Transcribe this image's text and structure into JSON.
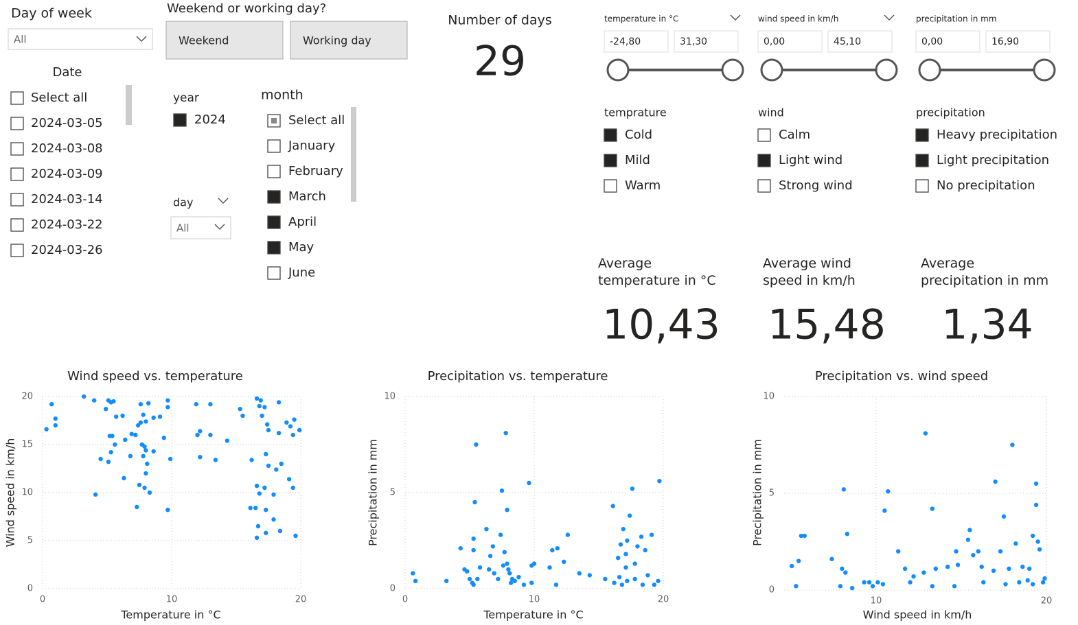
{
  "slicers": {
    "day_of_week": {
      "title": "Day of week",
      "value": "All"
    },
    "weekend": {
      "title": "Weekend or working day?",
      "options": [
        "Weekend",
        "Working day"
      ]
    },
    "date": {
      "title": "Date",
      "items": [
        {
          "label": "Select all",
          "state": "unchecked"
        },
        {
          "label": "2024-03-05",
          "state": "unchecked"
        },
        {
          "label": "2024-03-08",
          "state": "unchecked"
        },
        {
          "label": "2024-03-09",
          "state": "unchecked"
        },
        {
          "label": "2024-03-14",
          "state": "unchecked"
        },
        {
          "label": "2024-03-22",
          "state": "unchecked"
        },
        {
          "label": "2024-03-26",
          "state": "unchecked"
        }
      ]
    },
    "year": {
      "title": "year",
      "items": [
        {
          "label": "2024",
          "state": "checked"
        }
      ]
    },
    "day": {
      "title": "day",
      "value": "All"
    },
    "month": {
      "title": "month",
      "items": [
        {
          "label": "Select all",
          "state": "partial"
        },
        {
          "label": "January",
          "state": "unchecked"
        },
        {
          "label": "February",
          "state": "unchecked"
        },
        {
          "label": "March",
          "state": "checked"
        },
        {
          "label": "April",
          "state": "checked"
        },
        {
          "label": "May",
          "state": "checked"
        },
        {
          "label": "June",
          "state": "unchecked"
        }
      ]
    },
    "ranges": [
      {
        "title": "temperature in °C",
        "min": "-24,80",
        "max": "31,30",
        "collapsible": true
      },
      {
        "title": "wind speed in km/h",
        "min": "0,00",
        "max": "45,10",
        "collapsible": true
      },
      {
        "title": "precipitation in mm",
        "min": "0,00",
        "max": "16,90",
        "collapsible": false
      }
    ],
    "categories": [
      {
        "title": "temprature",
        "items": [
          {
            "label": "Cold",
            "state": "checked"
          },
          {
            "label": "Mild",
            "state": "checked"
          },
          {
            "label": "Warm",
            "state": "unchecked"
          }
        ]
      },
      {
        "title": "wind",
        "items": [
          {
            "label": "Calm",
            "state": "unchecked"
          },
          {
            "label": "Light wind",
            "state": "checked"
          },
          {
            "label": "Strong wind",
            "state": "unchecked"
          }
        ]
      },
      {
        "title": "precipitation",
        "items": [
          {
            "label": "Heavy precipitation",
            "state": "checked"
          },
          {
            "label": "Light precipitation",
            "state": "checked"
          },
          {
            "label": "No precipitation",
            "state": "unchecked"
          }
        ]
      }
    ]
  },
  "cards": {
    "days": {
      "label": "Number of days",
      "value": 29
    },
    "averages": [
      {
        "label": "Average temperature in °C",
        "value": "10,43"
      },
      {
        "label": "Average wind speed in km/h",
        "value": "15,48"
      },
      {
        "label": "Average precipitation in mm",
        "value": "1,34"
      }
    ]
  },
  "chart_data": [
    {
      "type": "scatter",
      "title": "Wind speed vs. temperature",
      "x_label": "Temperature in °C",
      "y_label": "Wind speed in km/h",
      "xlim": [
        0,
        20
      ],
      "ylim": [
        0,
        20
      ],
      "xticks": [
        0,
        10,
        20
      ],
      "yticks": [
        0,
        5,
        10,
        15,
        20
      ],
      "grid": true,
      "series": [
        {
          "color": "#118dff",
          "x": [
            0.3,
            0.7,
            1.0,
            1.0,
            3.2,
            4.0,
            4.1,
            4.5,
            4.9,
            5.1,
            5.3,
            5.5,
            5.2,
            5.4,
            5.6,
            5.3,
            5.1,
            5.7,
            6.2,
            6.4,
            6.3,
            6.8,
            6.9,
            7.2,
            7.4,
            7.6,
            7.6,
            7.8,
            8.0,
            7.7,
            7.9,
            8.0,
            7.8,
            8.1,
            8.0,
            7.5,
            7.9,
            8.3,
            7.3,
            8.6,
            8.2,
            8.6,
            9.1,
            9.4,
            9.7,
            9.7,
            9.9,
            9.7,
            11.9,
            12.0,
            12.2,
            12.2,
            13.0,
            13.0,
            13.4,
            14.3,
            15.3,
            15.5,
            16.2,
            16.6,
            16.9,
            16.8,
            17.2,
            17.0,
            17.4,
            17.5,
            17.3,
            17.5,
            16.6,
            16.8,
            17.2,
            16.1,
            16.5,
            17.3,
            17.9,
            16.7,
            16.6,
            17.3,
            17.9,
            18.1,
            18.5,
            18.3,
            18.3,
            18.9,
            18.4,
            19.1,
            19.2,
            19.4,
            19.5,
            19.4,
            19.9,
            19.6
          ],
          "values": [
            16.6,
            19.2,
            17.7,
            17.0,
            20,
            19.6,
            9.8,
            13.5,
            18.7,
            19.6,
            19.4,
            19.5,
            15.9,
            15.9,
            15.0,
            14.2,
            13.2,
            17.9,
            18.0,
            15.5,
            11.5,
            13.8,
            16.1,
            16.0,
            17.0,
            17.3,
            19.2,
            18.1,
            17.4,
            15.0,
            14.8,
            14.4,
            13.8,
            13.0,
            12.0,
            10.8,
            10.5,
            10.0,
            8.5,
            14.3,
            19.3,
            17.8,
            17.9,
            15.7,
            18.9,
            19.6,
            13.5,
            8.2,
            19.2,
            16.0,
            16.4,
            13.7,
            19.2,
            16.0,
            13.4,
            15.4,
            18.7,
            18.0,
            13.4,
            19.8,
            19.6,
            19.0,
            18.9,
            18.0,
            17.1,
            16.5,
            14.0,
            12.8,
            10.7,
            9.9,
            10.5,
            8.4,
            8.4,
            8.2,
            7.2,
            6.5,
            5.3,
            5.8,
            9.8,
            12.4,
            13.0,
            19.4,
            16.2,
            17.3,
            6.0,
            11.4,
            16.9,
            16.0,
            17.6,
            10.5,
            16.5,
            5.5
          ]
        }
      ]
    },
    {
      "type": "scatter",
      "title": "Precipitation vs. temperature",
      "x_label": "Temperature in °C",
      "y_label": "Precipitation in mm",
      "xlim": [
        0,
        20
      ],
      "ylim": [
        0,
        10
      ],
      "xticks": [
        0,
        10,
        20
      ],
      "yticks": [
        0,
        5,
        10
      ],
      "grid": true,
      "series": [
        {
          "color": "#118dff",
          "x": [
            0.6,
            0.8,
            3.2,
            4.3,
            4.6,
            4.8,
            5.0,
            5.2,
            5.3,
            5.3,
            5.3,
            5.4,
            5.5,
            5.6,
            5.8,
            6.3,
            6.5,
            6.6,
            6.8,
            6.9,
            7.2,
            7.4,
            7.5,
            7.6,
            7.7,
            7.8,
            7.9,
            7.9,
            8.0,
            8.1,
            8.2,
            8.3,
            8.5,
            8.8,
            9.2,
            9.6,
            9.8,
            9.8,
            10.0,
            11.2,
            11.4,
            11.8,
            11.7,
            12.3,
            12.6,
            13.5,
            14.3,
            15.5,
            16.1,
            16.2,
            16.5,
            16.6,
            16.7,
            16.8,
            16.9,
            17.1,
            17.1,
            17.2,
            17.2,
            17.4,
            17.6,
            17.8,
            17.8,
            18.0,
            18.3,
            18.4,
            18.6,
            18.8,
            19.1,
            19.3,
            19.7,
            19.6
          ],
          "values": [
            0.8,
            0.4,
            0.4,
            2.1,
            1.0,
            0.9,
            0.5,
            0.3,
            2.6,
            2.0,
            0.2,
            4.5,
            7.5,
            0.5,
            1.1,
            3.1,
            1.0,
            1.7,
            2.2,
            0.8,
            0.5,
            2.8,
            5.1,
            1.2,
            1.9,
            8.1,
            4.1,
            1.3,
            1.0,
            0.8,
            0.3,
            0.5,
            0.4,
            0.6,
            0.2,
            5.5,
            1.2,
            0.3,
            1.3,
            1.1,
            2.0,
            2.1,
            0.2,
            1.4,
            2.8,
            0.8,
            0.7,
            0.5,
            4.3,
            0.3,
            1.6,
            0.6,
            2.3,
            0.2,
            3.1,
            1.8,
            1.1,
            2.5,
            0.4,
            3.8,
            5.2,
            1.3,
            0.5,
            2.2,
            2.7,
            0.2,
            2.0,
            0.7,
            2.8,
            0.2,
            5.6,
            0.4
          ]
        }
      ]
    },
    {
      "type": "scatter",
      "title": "Precipitation vs. wind speed",
      "x_label": "Wind speed in km/h",
      "y_label": "Precipitation in mm",
      "xlim": [
        4.6,
        20
      ],
      "ylim": [
        0,
        10
      ],
      "xticks": [
        10,
        20
      ],
      "yticks": [
        0,
        5,
        10
      ],
      "grid": true,
      "series": [
        {
          "color": "#118dff",
          "x": [
            5.05,
            5.3,
            5.45,
            5.6,
            5.8,
            7.4,
            8.1,
            8.0,
            8.2,
            8.3,
            8.6,
            7.9,
            9.3,
            9.6,
            9.8,
            10.1,
            10.5,
            10.7,
            10.4,
            11.3,
            11.7,
            12.0,
            12.2,
            12.9,
            13.3,
            12.8,
            13.3,
            13.5,
            14.2,
            14.6,
            14.7,
            14.8,
            15.4,
            15.5,
            15.7,
            16.0,
            16.2,
            16.3,
            17.0,
            16.9,
            17.3,
            17.5,
            17.6,
            17.8,
            18.0,
            18.2,
            18.4,
            18.6,
            18.9,
            19.0,
            19.2,
            19.4,
            19.4,
            19.5,
            19.6,
            19.8,
            19.9,
            19.2
          ],
          "values": [
            1.24,
            0.2,
            1.5,
            2.8,
            2.8,
            1.6,
            5.2,
            1.1,
            0.9,
            2.9,
            0.1,
            0.2,
            0.4,
            0.4,
            0.2,
            0.4,
            4.1,
            5.1,
            0.3,
            2.0,
            1.1,
            0.4,
            0.7,
            8.1,
            4.2,
            0.9,
            0.2,
            1.1,
            1.2,
            0.2,
            2.0,
            1.3,
            2.6,
            3.1,
            1.8,
            2.0,
            1.2,
            0.4,
            5.6,
            1.0,
            2.0,
            3.8,
            0.3,
            1.1,
            7.5,
            2.4,
            0.4,
            1.2,
            0.5,
            1.1,
            2.8,
            5.5,
            4.4,
            2.5,
            2.1,
            0.4,
            0.6,
            0.3
          ]
        }
      ]
    }
  ]
}
